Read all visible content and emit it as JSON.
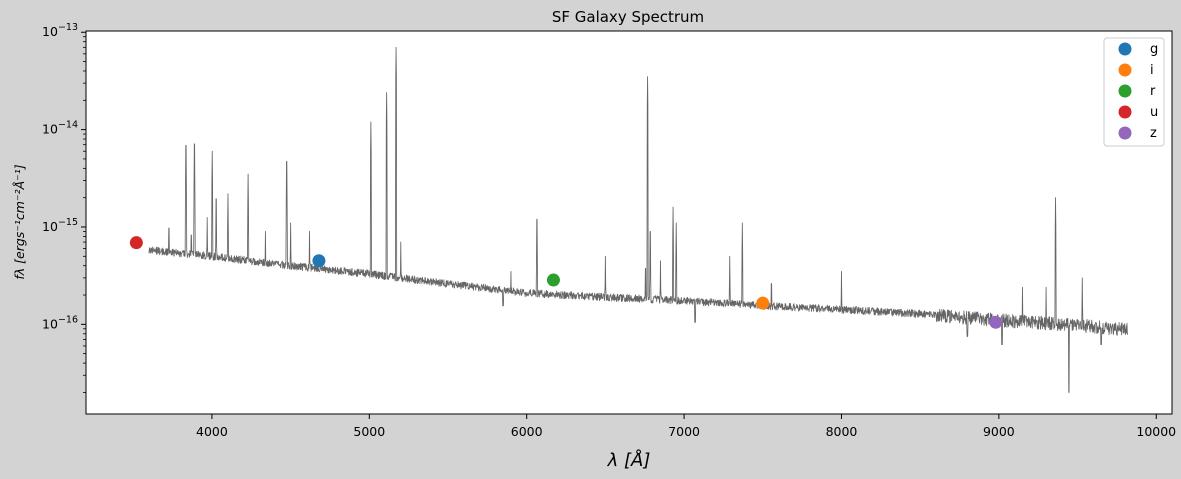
{
  "chart_data": {
    "type": "line",
    "title": "SF Galaxy Spectrum",
    "xlabel": "λ [Å]",
    "ylabel": "fλ [ergs⁻¹cm⁻²Å⁻¹]",
    "xlim": [
      3200,
      10100
    ],
    "ylim": [
      1.2e-17,
      1.03e-13
    ],
    "yscale": "log",
    "x_ticks": [
      4000,
      5000,
      6000,
      7000,
      8000,
      9000,
      10000
    ],
    "x_tick_labels": [
      "4000",
      "5000",
      "6000",
      "7000",
      "8000",
      "9000",
      "10000"
    ],
    "y_ticks": [
      1e-16,
      1e-15,
      1e-14,
      1e-13
    ],
    "y_tick_labels": [
      {
        "base": "10",
        "exp": "−16"
      },
      {
        "base": "10",
        "exp": "−15"
      },
      {
        "base": "10",
        "exp": "−14"
      },
      {
        "base": "10",
        "exp": "−13"
      }
    ],
    "grid": false,
    "legend_position": "top-right",
    "spectrum": {
      "color": "#666666",
      "wavelength_range": [
        3600,
        9820
      ],
      "continuum": [
        [
          3600,
          5.8e-16
        ],
        [
          4000,
          5e-16
        ],
        [
          4500,
          4e-16
        ],
        [
          5000,
          3.3e-16
        ],
        [
          5500,
          2.6e-16
        ],
        [
          6000,
          2.1e-16
        ],
        [
          6500,
          1.9e-16
        ],
        [
          7000,
          1.75e-16
        ],
        [
          7500,
          1.55e-16
        ],
        [
          8000,
          1.42e-16
        ],
        [
          8500,
          1.28e-16
        ],
        [
          9000,
          1.1e-16
        ],
        [
          9500,
          9.8e-17
        ],
        [
          9820,
          8.8e-17
        ]
      ],
      "emission_lines": [
        [
          3727,
          1.3e-15
        ],
        [
          3835,
          9.2e-15
        ],
        [
          3869,
          1.1e-15
        ],
        [
          3889,
          9.5e-15
        ],
        [
          3970,
          1.25e-15
        ],
        [
          4002,
          6e-15
        ],
        [
          4027,
          2.6e-15
        ],
        [
          4102,
          2.2e-15
        ],
        [
          4230,
          3.5e-15
        ],
        [
          4340,
          9e-16
        ],
        [
          4475,
          6.3e-15
        ],
        [
          4500,
          1.1e-15
        ],
        [
          4620,
          9e-16
        ],
        [
          5010,
          1.2e-14
        ],
        [
          5110,
          2.4e-14
        ],
        [
          5170,
          7e-14
        ],
        [
          5200,
          7e-16
        ],
        [
          5900,
          3.5e-16
        ],
        [
          6065,
          1.6e-15
        ],
        [
          6500,
          5e-16
        ],
        [
          6755,
          5e-16
        ],
        [
          6768,
          3.5e-14
        ],
        [
          6785,
          1.2e-15
        ],
        [
          6850,
          4.5e-16
        ],
        [
          6930,
          1.6e-15
        ],
        [
          6950,
          1.1e-15
        ],
        [
          7290,
          5e-16
        ],
        [
          7370,
          1.1e-15
        ],
        [
          7555,
          3.5e-16
        ],
        [
          8000,
          3.5e-16
        ],
        [
          9150,
          2.4e-16
        ],
        [
          9300,
          2.4e-16
        ],
        [
          9360,
          2e-15
        ],
        [
          9530,
          3e-16
        ]
      ],
      "absorption_dips": [
        [
          5850,
          1.55e-16
        ],
        [
          7070,
          1.05e-16
        ],
        [
          8800,
          7.5e-17
        ],
        [
          9020,
          6.2e-17
        ],
        [
          9445,
          2e-17
        ],
        [
          9650,
          6.2e-17
        ]
      ]
    },
    "series": [
      {
        "name": "g",
        "color": "#1f77b4",
        "x": 4680,
        "y": 4.5e-16
      },
      {
        "name": "i",
        "color": "#ff7f0e",
        "x": 7500,
        "y": 1.65e-16
      },
      {
        "name": "r",
        "color": "#2ca02c",
        "x": 6170,
        "y": 2.85e-16
      },
      {
        "name": "u",
        "color": "#d62728",
        "x": 3520,
        "y": 6.9e-16
      },
      {
        "name": "z",
        "color": "#9467bd",
        "x": 8980,
        "y": 1.05e-16
      }
    ]
  }
}
